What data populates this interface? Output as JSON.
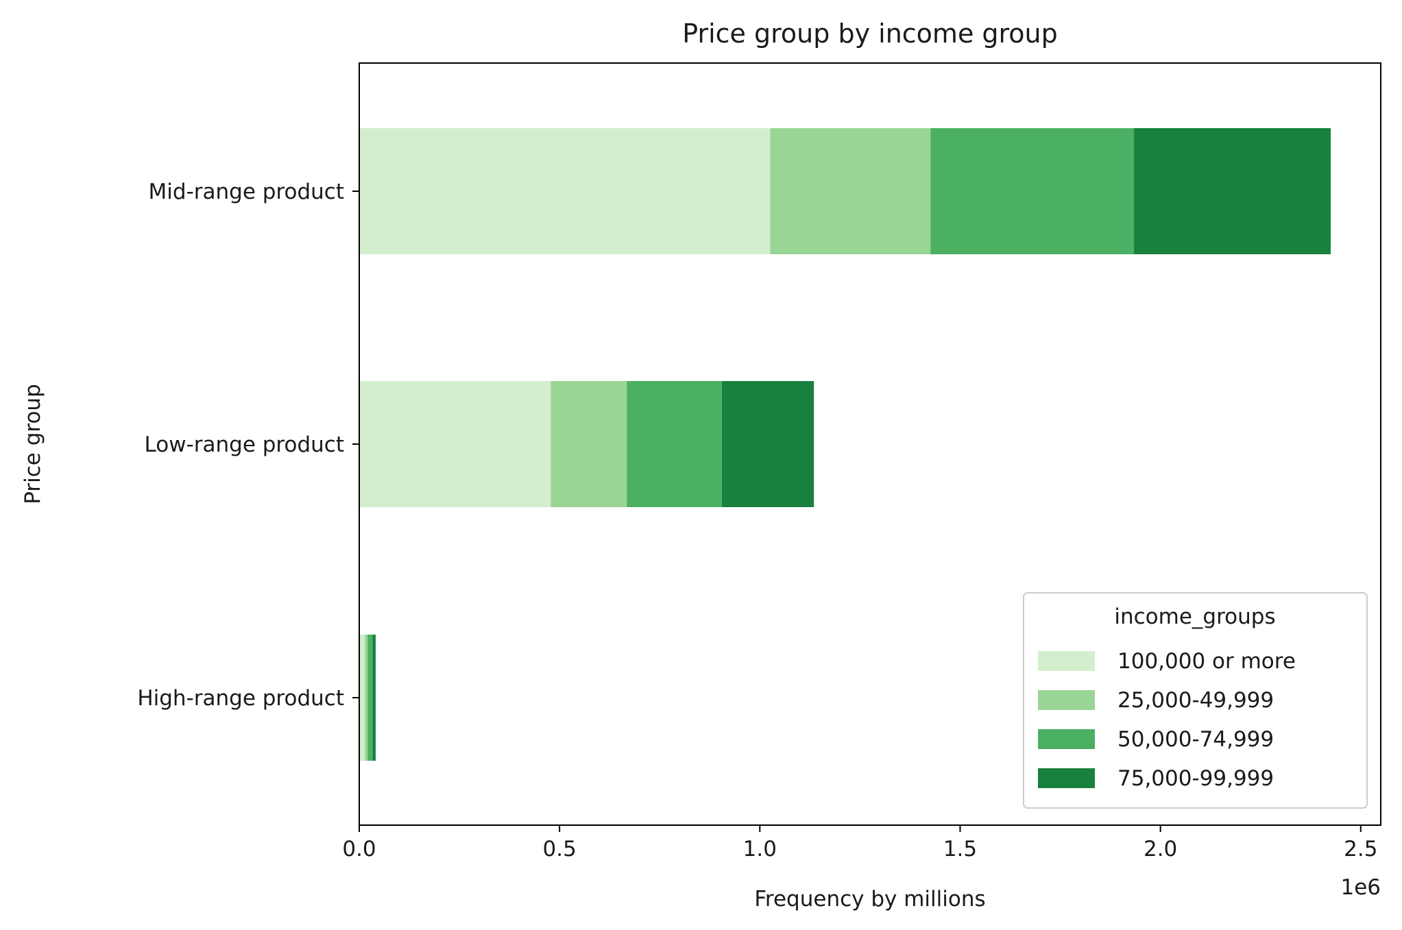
{
  "chart_data": {
    "type": "bar",
    "orientation": "horizontal",
    "stacked": true,
    "title": "Price group by income group",
    "xlabel": "Frequency by millions",
    "ylabel": "Price group",
    "x_offset_label": "1e6",
    "xlim": [
      0,
      2550000
    ],
    "x_ticks": [
      0,
      500000,
      1000000,
      1500000,
      2000000,
      2500000
    ],
    "x_tick_labels": [
      "0.0",
      "0.5",
      "1.0",
      "1.5",
      "2.0",
      "2.5"
    ],
    "grid": false,
    "categories": [
      "Mid-range product",
      "Low-range product",
      "High-range product"
    ],
    "legend": {
      "title": "income_groups",
      "placement": "lower-right"
    },
    "series": [
      {
        "name": "100,000 or more",
        "color": "#d3eecd",
        "values": [
          1026000,
          478000,
          14000
        ]
      },
      {
        "name": "25,000-49,999",
        "color": "#99d595",
        "values": [
          400000,
          190000,
          7000
        ]
      },
      {
        "name": "50,000-74,999",
        "color": "#4bb062",
        "values": [
          508000,
          237000,
          12000
        ]
      },
      {
        "name": "75,000-99,999",
        "color": "#17813d",
        "values": [
          491000,
          230000,
          8000
        ]
      }
    ]
  }
}
